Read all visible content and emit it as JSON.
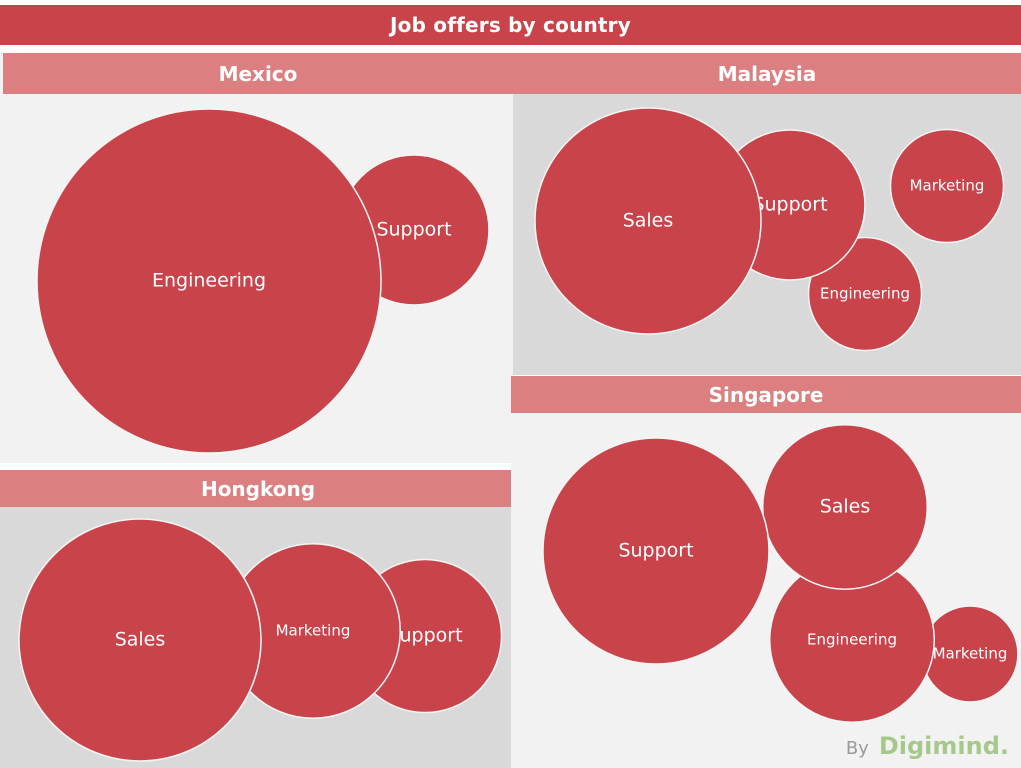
{
  "chart_title": "Job offers by country",
  "footer": {
    "by": "By",
    "brand": "Digimind."
  },
  "colors": {
    "bubble": "#c8444a",
    "header": "#db7f81",
    "title": "#c8444a",
    "brand": "#a6c98b"
  },
  "chart_data": [
    {
      "type": "bubble",
      "title": "Mexico",
      "categories": [
        "Engineering",
        "Support"
      ],
      "values": [
        100,
        19
      ]
    },
    {
      "type": "bubble",
      "title": "Malaysia",
      "categories": [
        "Sales",
        "Support",
        "Engineering",
        "Marketing"
      ],
      "values": [
        100,
        44,
        25,
        25
      ]
    },
    {
      "type": "bubble",
      "title": "Hongkong",
      "categories": [
        "Sales",
        "Marketing",
        "Support"
      ],
      "values": [
        100,
        52,
        40
      ]
    },
    {
      "type": "bubble",
      "title": "Singapore",
      "categories": [
        "Support",
        "Sales",
        "Engineering",
        "Marketing"
      ],
      "values": [
        100,
        53,
        53,
        18
      ]
    }
  ]
}
